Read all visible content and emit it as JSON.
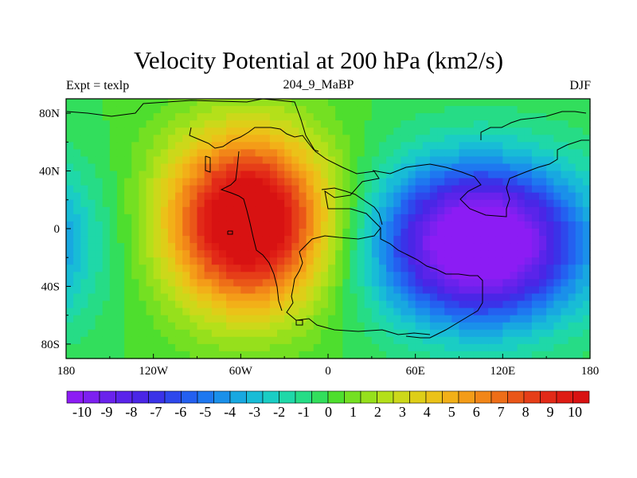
{
  "chart_data": {
    "type": "heatmap",
    "title": "Velocity Potential at 200 hPa (km2/s)",
    "left_subtitle": "Expt = texlp",
    "center_subtitle": "204_9_MaBP",
    "right_subtitle": "DJF",
    "x_range": [
      -180,
      180
    ],
    "y_range": [
      -90,
      90
    ],
    "x_ticks": [
      {
        "value": -180,
        "label": "180"
      },
      {
        "value": -120,
        "label": "120W"
      },
      {
        "value": -60,
        "label": "60W"
      },
      {
        "value": 0,
        "label": "0"
      },
      {
        "value": 60,
        "label": "60E"
      },
      {
        "value": 120,
        "label": "120E"
      },
      {
        "value": 180,
        "label": "180"
      }
    ],
    "y_ticks": [
      {
        "value": 80,
        "label": "80N"
      },
      {
        "value": 40,
        "label": "40N"
      },
      {
        "value": 0,
        "label": "0"
      },
      {
        "value": -40,
        "label": "40S"
      },
      {
        "value": -80,
        "label": "80S"
      }
    ],
    "field_features": [
      {
        "kind": "max",
        "lon": -55,
        "lat": 5,
        "amp": 12.5,
        "rx": 55,
        "ry": 60
      },
      {
        "kind": "min",
        "lon": 105,
        "lat": -10,
        "amp": -12.5,
        "rx": 70,
        "ry": 55
      }
    ],
    "colorbar": {
      "labels": [
        "-10",
        "-9",
        "-8",
        "-7",
        "-6",
        "-5",
        "-4",
        "-3",
        "-2",
        "-1",
        "0",
        "1",
        "2",
        "3",
        "4",
        "5",
        "6",
        "7",
        "8",
        "9",
        "10"
      ],
      "colors": [
        "#8c1cf4",
        "#7d20f0",
        "#6a22ec",
        "#5a24ea",
        "#4a26e6",
        "#3a33e8",
        "#2e48ec",
        "#2460f0",
        "#1e78f0",
        "#1a90ea",
        "#18a8e0",
        "#18bcd6",
        "#1acdc4",
        "#1fd8a8",
        "#26dc86",
        "#32de5c",
        "#4ede2e",
        "#74e022",
        "#96e01c",
        "#b4e01a",
        "#ccd81a",
        "#dece18",
        "#ebc218",
        "#f2b018",
        "#f49c18",
        "#f28618",
        "#ee6e18",
        "#ea5618",
        "#e63e18",
        "#e22a18",
        "#de1c14",
        "#d81212"
      ],
      "min": -10.5,
      "max": 10.5
    }
  }
}
